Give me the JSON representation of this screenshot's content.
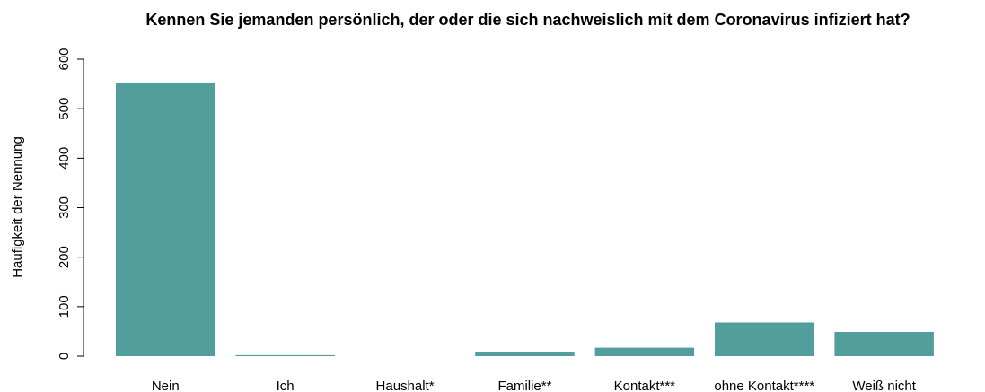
{
  "chart_data": {
    "type": "bar",
    "title": "Kennen Sie jemanden persönlich, der oder die sich nachweislich mit dem Coronavirus infiziert hat?",
    "y_label": "Häufigkeit der Nennung",
    "categories": [
      "Nein",
      "Ich",
      "Haushalt*",
      "Familie**",
      "Kontakt***",
      "ohne Kontakt****",
      "Weiß nicht"
    ],
    "values": [
      553,
      2,
      0,
      9,
      17,
      68,
      49
    ],
    "color": "#519e9c",
    "ylim": [
      0,
      600
    ],
    "yticks": [
      0,
      100,
      200,
      300,
      400,
      500,
      600
    ],
    "grid": false
  }
}
